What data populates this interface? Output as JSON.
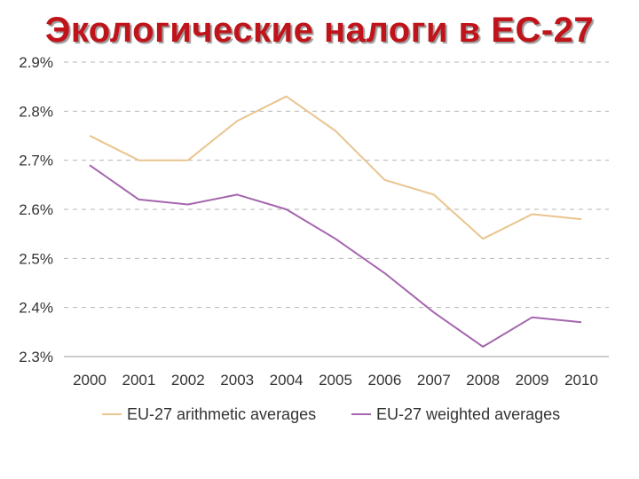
{
  "title": "Экологические налоги в ЕС-27",
  "chart_data": {
    "type": "line",
    "title": "Экологические налоги в ЕС-27",
    "xlabel": "",
    "ylabel": "",
    "categories": [
      "2000",
      "2001",
      "2002",
      "2003",
      "2004",
      "2005",
      "2006",
      "2007",
      "2008",
      "2009",
      "2010"
    ],
    "ylim": [
      2.3,
      2.9
    ],
    "yticks": [
      2.3,
      2.4,
      2.5,
      2.6,
      2.7,
      2.8,
      2.9
    ],
    "ytick_labels": [
      "2.3%",
      "2.4%",
      "2.5%",
      "2.6%",
      "2.7%",
      "2.8%",
      "2.9%"
    ],
    "grid": true,
    "legend_position": "bottom",
    "series": [
      {
        "name": "EU-27 arithmetic averages",
        "color": "#e9c48e",
        "values": [
          2.75,
          2.7,
          2.7,
          2.78,
          2.83,
          2.76,
          2.66,
          2.63,
          2.54,
          2.59,
          2.58
        ]
      },
      {
        "name": "EU-27 weighted averages",
        "color": "#a466ad",
        "values": [
          2.69,
          2.62,
          2.61,
          2.63,
          2.6,
          2.54,
          2.47,
          2.39,
          2.32,
          2.38,
          2.37
        ]
      }
    ]
  }
}
